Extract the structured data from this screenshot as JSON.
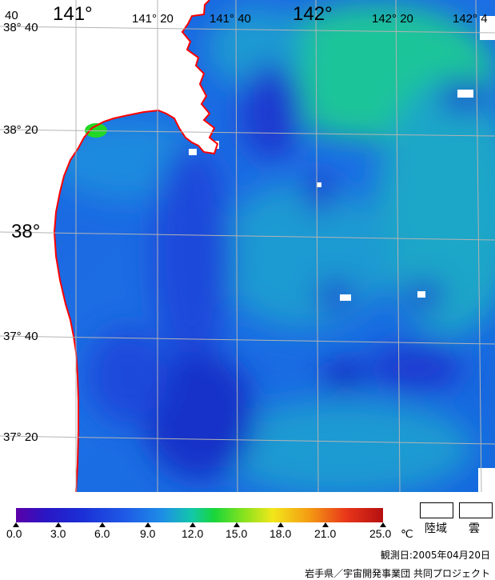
{
  "map": {
    "lon_labels": [
      {
        "text": "141°",
        "class": "big"
      },
      {
        "text": "141° 20",
        "class": "sm"
      },
      {
        "text": "141° 40",
        "class": "sm"
      },
      {
        "text": "142°",
        "class": "big"
      },
      {
        "text": "142° 20",
        "class": "sm"
      },
      {
        "text": "142° 4",
        "class": "sm"
      }
    ],
    "lat_labels": [
      {
        "text": "38° 40",
        "class": "sm"
      },
      {
        "text": "38° 20",
        "class": "sm"
      },
      {
        "text": "38°",
        "class": "big"
      },
      {
        "text": "37° 40",
        "class": "sm"
      },
      {
        "text": "37° 20",
        "class": "sm"
      }
    ],
    "corner_label": "40"
  },
  "colorbar": {
    "ticks": [
      "0.0",
      "3.0",
      "6.0",
      "9.0",
      "12.0",
      "15.0",
      "18.0",
      "21.0",
      "25.0"
    ],
    "unit": "℃"
  },
  "legend": {
    "land": "陸域",
    "cloud": "雲"
  },
  "footer": {
    "date": "観測日:2005年04月20日",
    "credit": "岩手県／宇宙開発事業団 共同プロジェクト"
  },
  "colors": {
    "land": "#ffffff",
    "coastline": "#ff0000",
    "grid": "#b4b4b4"
  }
}
